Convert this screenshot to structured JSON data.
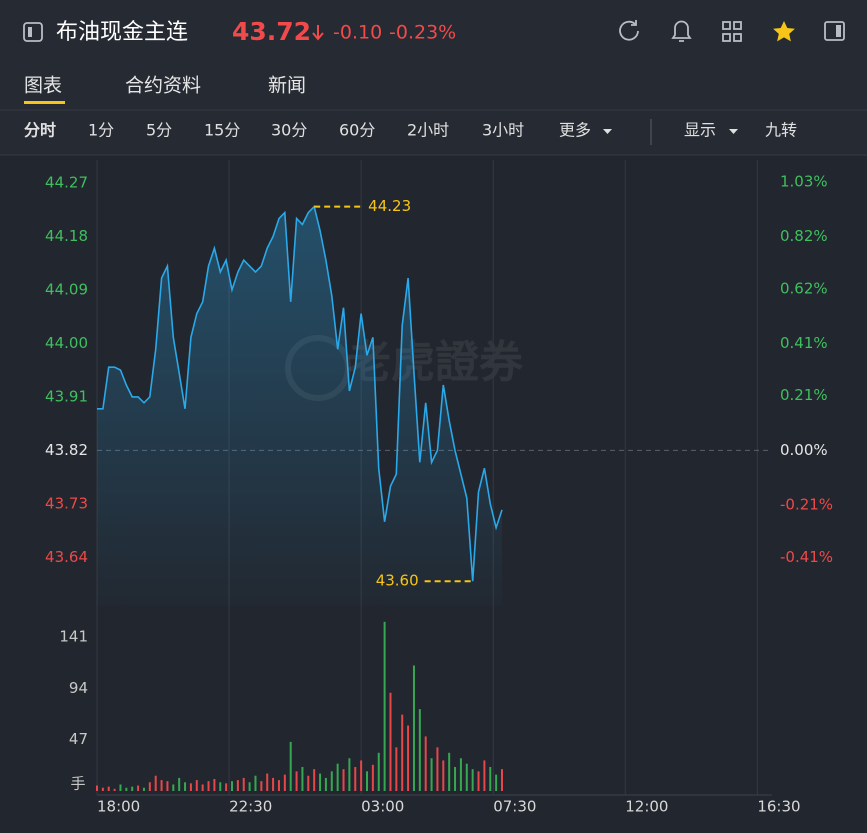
{
  "header": {
    "title": "布油现金主连",
    "price": "43.72",
    "change": "-0.10",
    "change_pct": "-0.23%"
  },
  "tabs": [
    "图表",
    "合约资料",
    "新闻"
  ],
  "periods": [
    "分时",
    "1分",
    "5分",
    "15分",
    "30分",
    "60分",
    "2小时",
    "3小时",
    "更多"
  ],
  "options": [
    "显示",
    "九转"
  ],
  "watermark": "老虎證券",
  "chart_data": [
    {
      "type": "line",
      "color": "#2aa9ea",
      "x": [
        0,
        0.2,
        0.4,
        0.6,
        0.8,
        1,
        1.2,
        1.4,
        1.6,
        1.8,
        2,
        2.2,
        2.4,
        2.6,
        2.8,
        3,
        3.2,
        3.4,
        3.6,
        3.8,
        4,
        4.2,
        4.4,
        4.6,
        4.8,
        5,
        5.2,
        5.4,
        5.6,
        5.8,
        6,
        6.2,
        6.4,
        6.6,
        6.8,
        7,
        7.2,
        7.4,
        7.6,
        7.8,
        8,
        8.2,
        8.4,
        8.6,
        8.8,
        9,
        9.2,
        9.4,
        9.6,
        9.8,
        10,
        10.2,
        10.4,
        10.6,
        10.8,
        11,
        11.2,
        11.4,
        11.6,
        11.8,
        12,
        12.2,
        12.4,
        12.6,
        12.8,
        13,
        13.2,
        13.4,
        13.6,
        13.8
      ],
      "values": [
        43.89,
        43.89,
        43.96,
        43.96,
        43.955,
        43.93,
        43.91,
        43.91,
        43.9,
        43.91,
        43.99,
        44.11,
        44.13,
        44.01,
        43.95,
        43.89,
        44.01,
        44.05,
        44.07,
        44.13,
        44.16,
        44.12,
        44.14,
        44.09,
        44.12,
        44.14,
        44.13,
        44.12,
        44.13,
        44.16,
        44.18,
        44.21,
        44.22,
        44.07,
        44.21,
        44.2,
        44.22,
        44.23,
        44.19,
        44.14,
        44.08,
        43.99,
        44.06,
        43.92,
        43.96,
        44.05,
        43.98,
        44.01,
        43.79,
        43.7,
        43.76,
        43.78,
        44.03,
        44.11,
        43.95,
        43.8,
        43.9,
        43.8,
        43.82,
        43.93,
        43.87,
        43.82,
        43.78,
        43.74,
        43.6,
        43.75,
        43.79,
        43.73,
        43.69,
        43.72
      ],
      "xlim": [
        0,
        23
      ],
      "ylim": [
        43.56,
        44.3
      ],
      "yticks": [
        44.27,
        44.18,
        44.09,
        {
          "value": 44.0,
          "label": "44.00"
        },
        43.91,
        43.82,
        43.73,
        43.64
      ],
      "prev_close": 43.82,
      "y2lim": [
        -0.593,
        1.095
      ],
      "y2ticks": [
        {
          "value": 1.03,
          "label": "1.03%"
        },
        {
          "value": 0.82,
          "label": "0.82%"
        },
        {
          "value": 0.62,
          "label": "0.62%"
        },
        {
          "value": 0.41,
          "label": "0.41%"
        },
        {
          "value": 0.21,
          "label": "0.21%"
        },
        {
          "value": 0.0,
          "label": "0.00%"
        },
        {
          "value": -0.21,
          "label": "-0.21%"
        },
        {
          "value": -0.41,
          "label": "-0.41%"
        }
      ],
      "annotations": [
        {
          "x": 7.4,
          "value": 44.23,
          "side": "right"
        },
        {
          "x": 12.8,
          "value": 43.6,
          "label": "43.60",
          "side": "left"
        }
      ],
      "up_color": "#3fbf5f",
      "down_color": "#f04848"
    },
    {
      "type": "bar",
      "y_label": "手",
      "x": [
        0,
        0.2,
        0.4,
        0.6,
        0.8,
        1,
        1.2,
        1.4,
        1.6,
        1.8,
        2,
        2.2,
        2.4,
        2.6,
        2.8,
        3,
        3.2,
        3.4,
        3.6,
        3.8,
        4,
        4.2,
        4.4,
        4.6,
        4.8,
        5,
        5.2,
        5.4,
        5.6,
        5.8,
        6,
        6.2,
        6.4,
        6.6,
        6.8,
        7,
        7.2,
        7.4,
        7.6,
        7.8,
        8,
        8.2,
        8.4,
        8.6,
        8.8,
        9,
        9.2,
        9.4,
        9.6,
        9.8,
        10,
        10.2,
        10.4,
        10.6,
        10.8,
        11,
        11.2,
        11.4,
        11.6,
        11.8,
        12,
        12.2,
        12.4,
        12.6,
        12.8,
        13,
        13.2,
        13.4,
        13.6,
        13.8
      ],
      "values": [
        5,
        3,
        4,
        2,
        6,
        3,
        4,
        5,
        3,
        8,
        14,
        10,
        9,
        6,
        12,
        8,
        7,
        10,
        6,
        9,
        11,
        8,
        7,
        9,
        10,
        12,
        8,
        14,
        9,
        16,
        12,
        10,
        15,
        45,
        18,
        22,
        14,
        20,
        16,
        12,
        18,
        25,
        20,
        30,
        22,
        28,
        18,
        24,
        35,
        155,
        90,
        40,
        70,
        60,
        115,
        75,
        50,
        30,
        40,
        28,
        35,
        22,
        30,
        25,
        20,
        18,
        28,
        22,
        15,
        20
      ],
      "xlim": [
        0,
        23
      ],
      "xticks": [
        {
          "value": 0,
          "label": "18:00"
        },
        {
          "value": 4.5,
          "label": "22:30"
        },
        {
          "value": 9,
          "label": "03:00"
        },
        {
          "value": 13.5,
          "label": "07:30"
        },
        {
          "value": 18,
          "label": "12:00"
        },
        {
          "value": 22.5,
          "label": "16:30"
        }
      ],
      "ylim": [
        0,
        175
      ],
      "yticks": [
        47,
        94,
        141
      ],
      "up_color": "#e8474a",
      "down_color": "#36a852"
    }
  ]
}
